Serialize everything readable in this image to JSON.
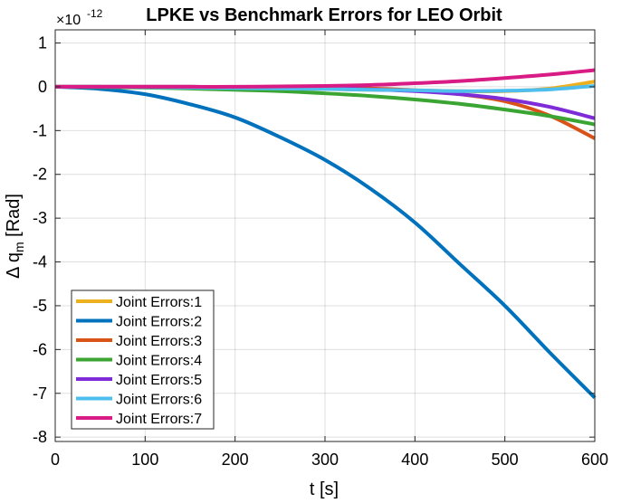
{
  "chart_data": {
    "type": "line",
    "title": "LPKE vs Benchmark Errors for LEO Orbit",
    "xlabel": "t [s]",
    "ylabel_prefix": "Δ  q",
    "ylabel_sub": "m",
    "ylabel_suffix": " [Rad]",
    "y_exponent_base": "×10",
    "y_exponent_power": "-12",
    "xlim": [
      0,
      600
    ],
    "ylim": [
      -8.1,
      1.3
    ],
    "grid": true,
    "legend_position": "bottom-left",
    "x_ticks": [
      0,
      100,
      200,
      300,
      400,
      500,
      600
    ],
    "x_tick_labels": [
      "0",
      "100",
      "200",
      "300",
      "400",
      "500",
      "600"
    ],
    "y_ticks": [
      1,
      0,
      -1,
      -2,
      -3,
      -4,
      -5,
      -6,
      -7,
      -8
    ],
    "y_tick_labels": [
      "1",
      "0",
      "-1",
      "-2",
      "-3",
      "-4",
      "-5",
      "-6",
      "-7",
      "-8"
    ],
    "x": [
      0,
      50,
      100,
      150,
      200,
      250,
      300,
      350,
      400,
      450,
      500,
      550,
      600
    ],
    "series": [
      {
        "name": "Joint Errors:1",
        "color": "#EDB120",
        "values": [
          0,
          0,
          -0.01,
          -0.02,
          -0.03,
          -0.04,
          -0.05,
          -0.07,
          -0.08,
          -0.1,
          -0.1,
          -0.04,
          0.12
        ]
      },
      {
        "name": "Joint Errors:2",
        "color": "#0072BD",
        "values": [
          0,
          -0.05,
          -0.17,
          -0.4,
          -0.7,
          -1.15,
          -1.67,
          -2.32,
          -3.1,
          -4.05,
          -5.0,
          -6.07,
          -7.1
        ]
      },
      {
        "name": "Joint Errors:3",
        "color": "#D95319",
        "values": [
          0,
          0,
          0,
          0,
          -0.01,
          -0.01,
          -0.02,
          -0.04,
          -0.08,
          -0.17,
          -0.33,
          -0.66,
          -1.18
        ]
      },
      {
        "name": "Joint Errors:4",
        "color": "#3AA532",
        "values": [
          0,
          -0.01,
          -0.02,
          -0.04,
          -0.07,
          -0.1,
          -0.15,
          -0.21,
          -0.29,
          -0.39,
          -0.52,
          -0.67,
          -0.86
        ]
      },
      {
        "name": "Joint Errors:5",
        "color": "#7E2CD8",
        "values": [
          0,
          0,
          0,
          0,
          -0.01,
          -0.02,
          -0.04,
          -0.06,
          -0.1,
          -0.17,
          -0.28,
          -0.46,
          -0.72
        ]
      },
      {
        "name": "Joint Errors:6",
        "color": "#4DBEEE",
        "values": [
          0,
          0,
          -0.01,
          -0.02,
          -0.03,
          -0.04,
          -0.05,
          -0.07,
          -0.08,
          -0.1,
          -0.09,
          -0.06,
          0.02
        ]
      },
      {
        "name": "Joint Errors:7",
        "color": "#D81B85",
        "values": [
          0,
          0,
          0,
          0,
          0,
          0.01,
          0.02,
          0.04,
          0.08,
          0.13,
          0.2,
          0.28,
          0.38
        ]
      }
    ]
  }
}
